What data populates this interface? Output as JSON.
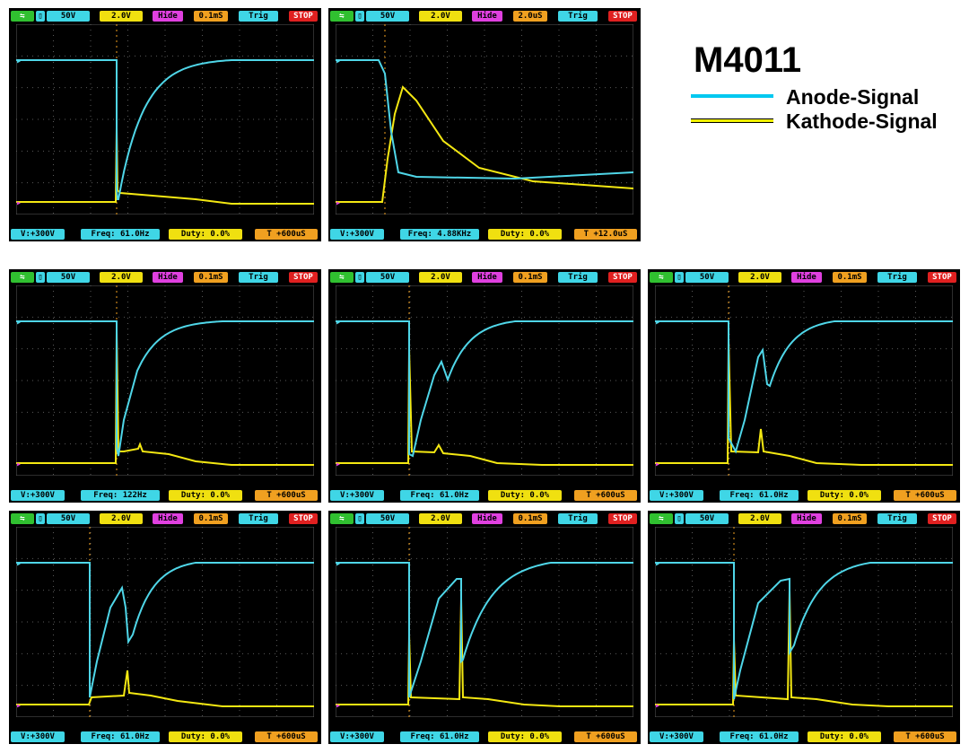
{
  "legend": {
    "title": "M4011",
    "items": [
      {
        "label": "Anode-Signal",
        "color": "#00c8f0"
      },
      {
        "label": "Kathode-Signal",
        "color": "#f0f000"
      }
    ]
  },
  "colors": {
    "anode": "#4fd6e8",
    "cathode": "#f4e812",
    "grid": "#5a5a5a",
    "screen": "#000000",
    "chip_cyan": "#3fd6e6",
    "chip_yellow": "#f0e010",
    "chip_magenta": "#e040e0",
    "chip_orange": "#f0a020",
    "chip_red": "#e02020",
    "chip_green": "#30c030"
  },
  "screenshots": [
    {
      "ch1_scale": "50V",
      "ch2_scale": "2.0V",
      "hide": "Hide",
      "timebase": "0.1mS",
      "trig": "Trig",
      "stop": "STOP",
      "v_readout": "V:+300V",
      "freq": "Freq: 61.0Hz",
      "duty": "Duty: 0.0%",
      "t_readout": "T +600uS"
    },
    {
      "ch1_scale": "50V",
      "ch2_scale": "2.0V",
      "hide": "Hide",
      "timebase": "2.0uS",
      "trig": "Trig",
      "stop": "STOP",
      "v_readout": "V:+300V",
      "freq": "Freq: 4.88KHz",
      "duty": "Duty: 0.0%",
      "t_readout": "T +12.0uS"
    },
    {
      "ch1_scale": "50V",
      "ch2_scale": "2.0V",
      "hide": "Hide",
      "timebase": "0.1mS",
      "trig": "Trig",
      "stop": "STOP",
      "v_readout": "V:+300V",
      "freq": "Freq: 122Hz",
      "duty": "Duty: 0.0%",
      "t_readout": "T +600uS"
    },
    {
      "ch1_scale": "50V",
      "ch2_scale": "2.0V",
      "hide": "Hide",
      "timebase": "0.1mS",
      "trig": "Trig",
      "stop": "STOP",
      "v_readout": "V:+300V",
      "freq": "Freq: 61.0Hz",
      "duty": "Duty: 0.0%",
      "t_readout": "T +600uS"
    },
    {
      "ch1_scale": "50V",
      "ch2_scale": "2.0V",
      "hide": "Hide",
      "timebase": "0.1mS",
      "trig": "Trig",
      "stop": "STOP",
      "v_readout": "V:+300V",
      "freq": "Freq: 61.0Hz",
      "duty": "Duty: 0.0%",
      "t_readout": "T +600uS"
    },
    {
      "ch1_scale": "50V",
      "ch2_scale": "2.0V",
      "hide": "Hide",
      "timebase": "0.1mS",
      "trig": "Trig",
      "stop": "STOP",
      "v_readout": "V:+300V",
      "freq": "Freq: 61.0Hz",
      "duty": "Duty: 0.0%",
      "t_readout": "T +600uS"
    },
    {
      "ch1_scale": "50V",
      "ch2_scale": "2.0V",
      "hide": "Hide",
      "timebase": "0.1mS",
      "trig": "Trig",
      "stop": "STOP",
      "v_readout": "V:+300V",
      "freq": "Freq: 61.0Hz",
      "duty": "Duty: 0.0%",
      "t_readout": "T +600uS"
    },
    {
      "ch1_scale": "50V",
      "ch2_scale": "2.0V",
      "hide": "Hide",
      "timebase": "0.1mS",
      "trig": "Trig",
      "stop": "STOP",
      "v_readout": "V:+300V",
      "freq": "Freq: 61.0Hz",
      "duty": "Duty: 0.0%",
      "t_readout": "T +600uS"
    }
  ]
}
